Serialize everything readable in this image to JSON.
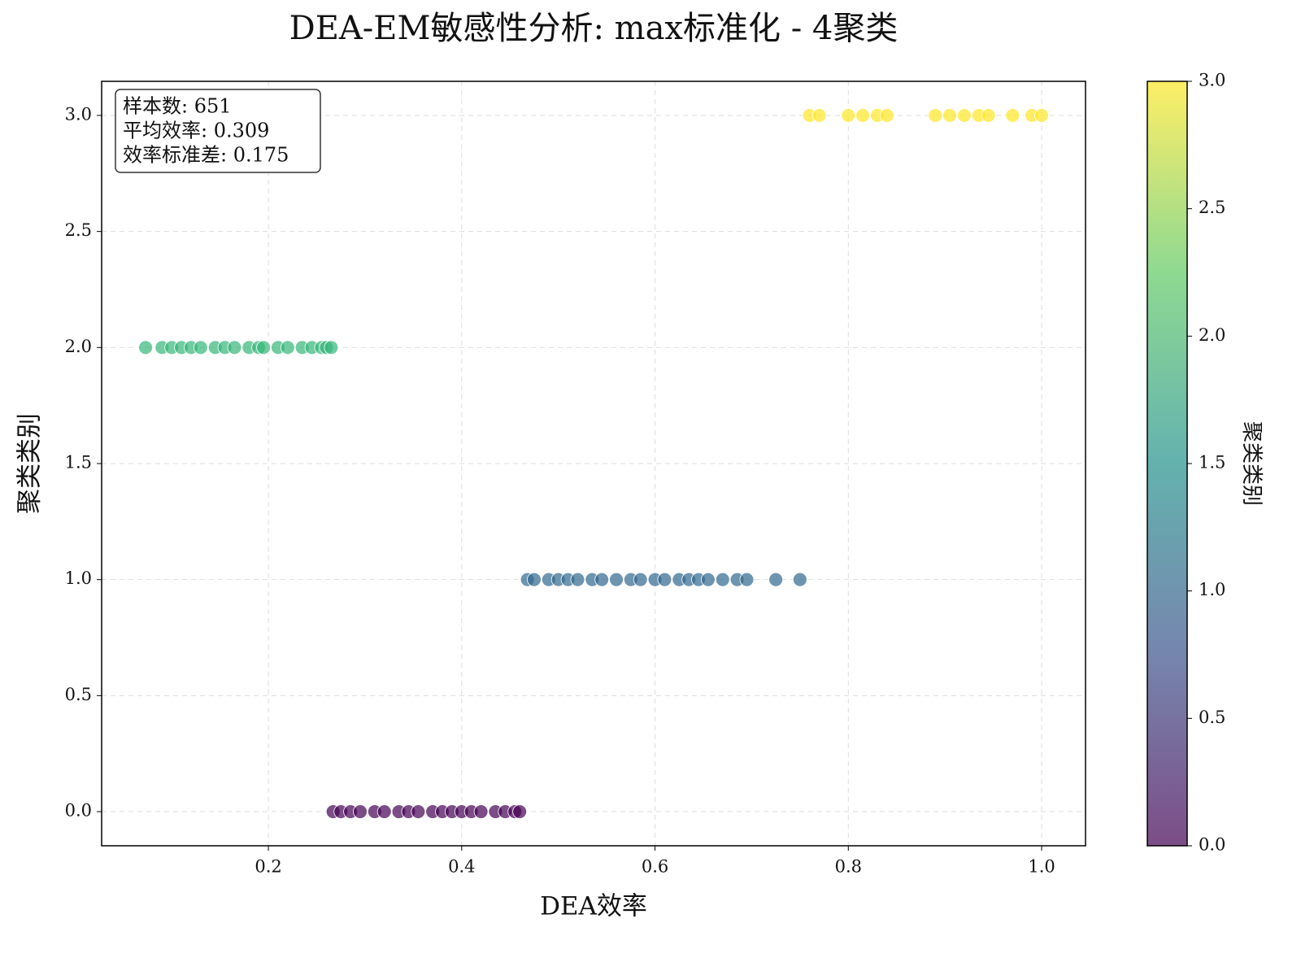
{
  "chart_data": {
    "type": "scatter",
    "title": "DEA-EM敏感性分析: max标准化 - 4聚类",
    "x_label": "DEA效率",
    "y_label": "聚类类别",
    "annotations": [
      "样本数: 651",
      "平均效率: 0.309",
      "效率标准差: 0.175"
    ],
    "xlim": [
      0.0275,
      1.0454
    ],
    "ylim": [
      -0.147,
      3.147
    ],
    "xticks": [
      0.2,
      0.4,
      0.6,
      0.8,
      {
        "value": 1,
        "label": "1.0"
      }
    ],
    "yticks": [
      {
        "value": 0,
        "label": "0.0"
      },
      0.5,
      {
        "value": 1,
        "label": "1.0"
      },
      1.5,
      {
        "value": 2,
        "label": "2.0"
      },
      2.5,
      {
        "value": 3,
        "label": "3.0"
      }
    ],
    "grid": true,
    "series": [
      {
        "color": "#440154",
        "x": [
          0.267,
          0.275,
          0.285,
          0.295,
          0.31,
          0.32,
          0.335,
          0.345,
          0.355,
          0.37,
          0.38,
          0.39,
          0.4,
          0.41,
          0.42,
          0.435,
          0.445,
          0.455,
          0.46
        ],
        "values": [
          0,
          0,
          0,
          0,
          0,
          0,
          0,
          0,
          0,
          0,
          0,
          0,
          0,
          0,
          0,
          0,
          0,
          0,
          0
        ]
      },
      {
        "color": "#31688e",
        "x": [
          0.468,
          0.475,
          0.49,
          0.5,
          0.51,
          0.52,
          0.535,
          0.545,
          0.56,
          0.575,
          0.585,
          0.6,
          0.61,
          0.625,
          0.635,
          0.645,
          0.655,
          0.67,
          0.685,
          0.695,
          0.725,
          0.75
        ],
        "values": [
          1,
          1,
          1,
          1,
          1,
          1,
          1,
          1,
          1,
          1,
          1,
          1,
          1,
          1,
          1,
          1,
          1,
          1,
          1,
          1,
          1,
          1
        ]
      },
      {
        "color": "#35b779",
        "x": [
          0.073,
          0.09,
          0.1,
          0.11,
          0.12,
          0.13,
          0.145,
          0.155,
          0.165,
          0.18,
          0.19,
          0.195,
          0.21,
          0.22,
          0.235,
          0.245,
          0.255,
          0.26,
          0.265
        ],
        "values": [
          2,
          2,
          2,
          2,
          2,
          2,
          2,
          2,
          2,
          2,
          2,
          2,
          2,
          2,
          2,
          2,
          2,
          2,
          2
        ]
      },
      {
        "color": "#fde725",
        "x": [
          0.76,
          0.77,
          0.8,
          0.815,
          0.83,
          0.84,
          0.89,
          0.905,
          0.92,
          0.935,
          0.945,
          0.97,
          0.99,
          1.0
        ],
        "values": [
          3,
          3,
          3,
          3,
          3,
          3,
          3,
          3,
          3,
          3,
          3,
          3,
          3,
          3
        ]
      }
    ],
    "colorbar": {
      "label": "聚类类别",
      "ylim": [
        0,
        3
      ],
      "yticks": [
        {
          "value": 0,
          "label": "0.0"
        },
        0.5,
        {
          "value": 1,
          "label": "1.0"
        },
        1.5,
        {
          "value": 2,
          "label": "2.0"
        },
        2.5,
        {
          "value": 3,
          "label": "3.0"
        }
      ],
      "colors": [
        "#440154",
        "#3b528b",
        "#21918c",
        "#5ec962",
        "#fde725"
      ]
    }
  }
}
